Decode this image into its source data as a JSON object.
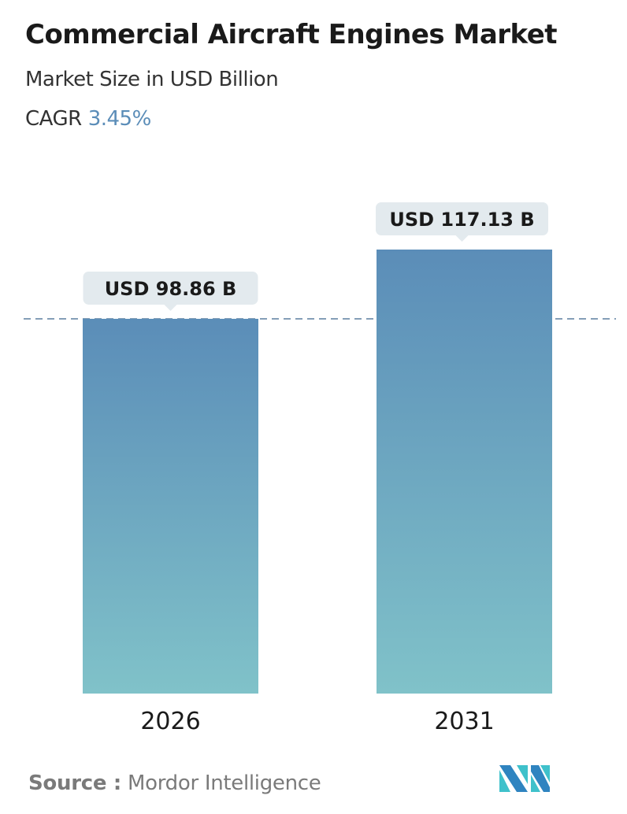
{
  "header": {
    "title": "Commercial Aircraft Engines Market",
    "subtitle": "Market Size in USD Billion",
    "cagr_label": "CAGR",
    "cagr_value": "3.45%"
  },
  "chart_data": {
    "type": "bar",
    "categories": [
      "2026",
      "2031"
    ],
    "values": [
      98.86,
      117.13
    ],
    "data_labels": [
      "USD 98.86 B",
      "USD 117.13 B"
    ],
    "ylim": [
      0,
      117.13
    ],
    "grid": false,
    "reference_line": {
      "value": 98.86,
      "style": "dashed"
    },
    "colors": {
      "bar_top": "#5b8db8",
      "bar_bottom": "#80c2c9",
      "label_bg": "#e3eaee",
      "reference_line": "#5b7f9f"
    }
  },
  "footer": {
    "source_label": "Source :",
    "source_name": "Mordor Intelligence",
    "logo_text": "MI"
  }
}
